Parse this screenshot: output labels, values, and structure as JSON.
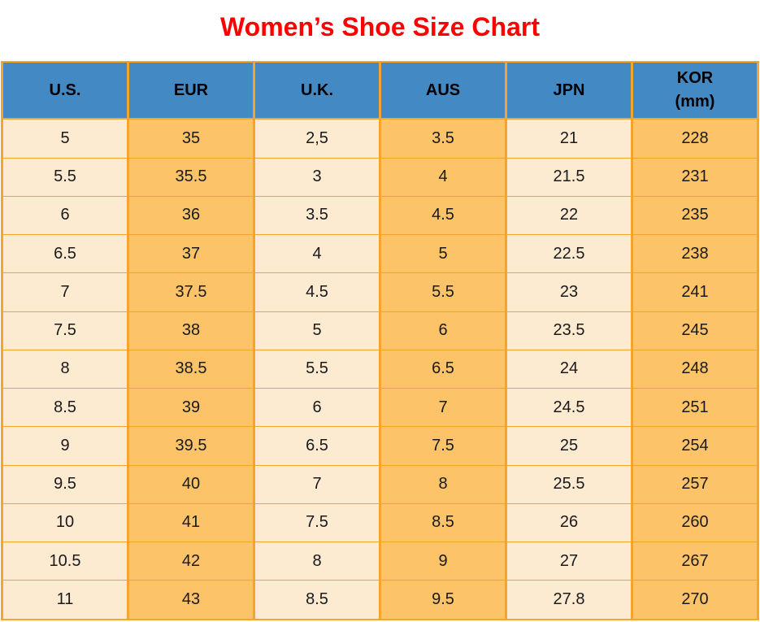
{
  "title": "Women’s Shoe Size Chart",
  "colors": {
    "title": "#ff0000",
    "header_bg": "#4389c4",
    "header_text": "#000000",
    "col_light": "#fcead1",
    "col_orange": "#fdc369",
    "border": "#f5a52c",
    "cell_text": "#1a1a1a"
  },
  "table": {
    "header": [
      {
        "label": "U.S.",
        "sublabel": ""
      },
      {
        "label": "EUR",
        "sublabel": ""
      },
      {
        "label": "U.K.",
        "sublabel": ""
      },
      {
        "label": "AUS",
        "sublabel": ""
      },
      {
        "label": "JPN",
        "sublabel": ""
      },
      {
        "label": "KOR",
        "sublabel": "(mm)"
      }
    ]
  },
  "chart_data": {
    "type": "table",
    "title": "Women’s Shoe Size Chart",
    "columns": [
      "U.S.",
      "EUR",
      "U.K.",
      "AUS",
      "JPN",
      "KOR (mm)"
    ],
    "rows": [
      [
        "5",
        "35",
        "2,5",
        "3.5",
        "21",
        "228"
      ],
      [
        "5.5",
        "35.5",
        "3",
        "4",
        "21.5",
        "231"
      ],
      [
        "6",
        "36",
        "3.5",
        "4.5",
        "22",
        "235"
      ],
      [
        "6.5",
        "37",
        "4",
        "5",
        "22.5",
        "238"
      ],
      [
        "7",
        "37.5",
        "4.5",
        "5.5",
        "23",
        "241"
      ],
      [
        "7.5",
        "38",
        "5",
        "6",
        "23.5",
        "245"
      ],
      [
        "8",
        "38.5",
        "5.5",
        "6.5",
        "24",
        "248"
      ],
      [
        "8.5",
        "39",
        "6",
        "7",
        "24.5",
        "251"
      ],
      [
        "9",
        "39.5",
        "6.5",
        "7.5",
        "25",
        "254"
      ],
      [
        "9.5",
        "40",
        "7",
        "8",
        "25.5",
        "257"
      ],
      [
        "10",
        "41",
        "7.5",
        "8.5",
        "26",
        "260"
      ],
      [
        "10.5",
        "42",
        "8",
        "9",
        "27",
        "267"
      ],
      [
        "11",
        "43",
        "8.5",
        "9.5",
        "27.8",
        "270"
      ]
    ]
  }
}
